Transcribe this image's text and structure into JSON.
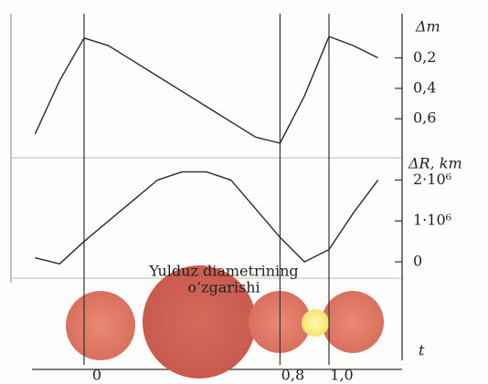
{
  "chart_data": [
    {
      "type": "line",
      "y_label": "Δm",
      "x": [
        -0.2,
        -0.1,
        0,
        0.1,
        0.2,
        0.3,
        0.4,
        0.5,
        0.6,
        0.7,
        0.8,
        0.9,
        1.0,
        1.1,
        1.2
      ],
      "values": [
        0.7,
        0.35,
        0.07,
        0.12,
        0.22,
        0.32,
        0.42,
        0.52,
        0.62,
        0.72,
        0.76,
        0.45,
        0.06,
        0.12,
        0.2
      ],
      "ylim": [
        0.85,
        -0.06
      ],
      "yticks": [
        {
          "value": 0.2,
          "label": "0,2"
        },
        {
          "value": 0.4,
          "label": "0,4"
        },
        {
          "value": 0.6,
          "label": "0,6"
        }
      ],
      "xlim": [
        -0.2,
        1.2
      ],
      "xticks": [
        {
          "value": 0,
          "label": "0"
        },
        {
          "value": 0.8,
          "label": "0,8"
        },
        {
          "value": 1.0,
          "label": "1,0"
        }
      ],
      "color": "#2a2a2a"
    },
    {
      "type": "line",
      "y_label": "ΔR, km",
      "x": [
        -0.2,
        -0.1,
        0,
        0.1,
        0.2,
        0.3,
        0.4,
        0.5,
        0.6,
        0.7,
        0.8,
        0.9,
        1.0,
        1.1,
        1.2
      ],
      "values": [
        100000,
        -50000,
        500000,
        1000000,
        1500000,
        2000000,
        2200000,
        2200000,
        2000000,
        1300000,
        600000,
        0,
        300000,
        1200000,
        2000000
      ],
      "ylim": [
        -400000,
        2500000
      ],
      "yticks": [
        {
          "value": 2000000,
          "label": "2·10⁶"
        },
        {
          "value": 1000000,
          "label": "1·10⁶"
        },
        0
      ],
      "x_label": "t",
      "annotation": [
        "Yulduz diametrining",
        "o‘zgarishi"
      ],
      "color": "#2a2a2a"
    }
  ]
}
